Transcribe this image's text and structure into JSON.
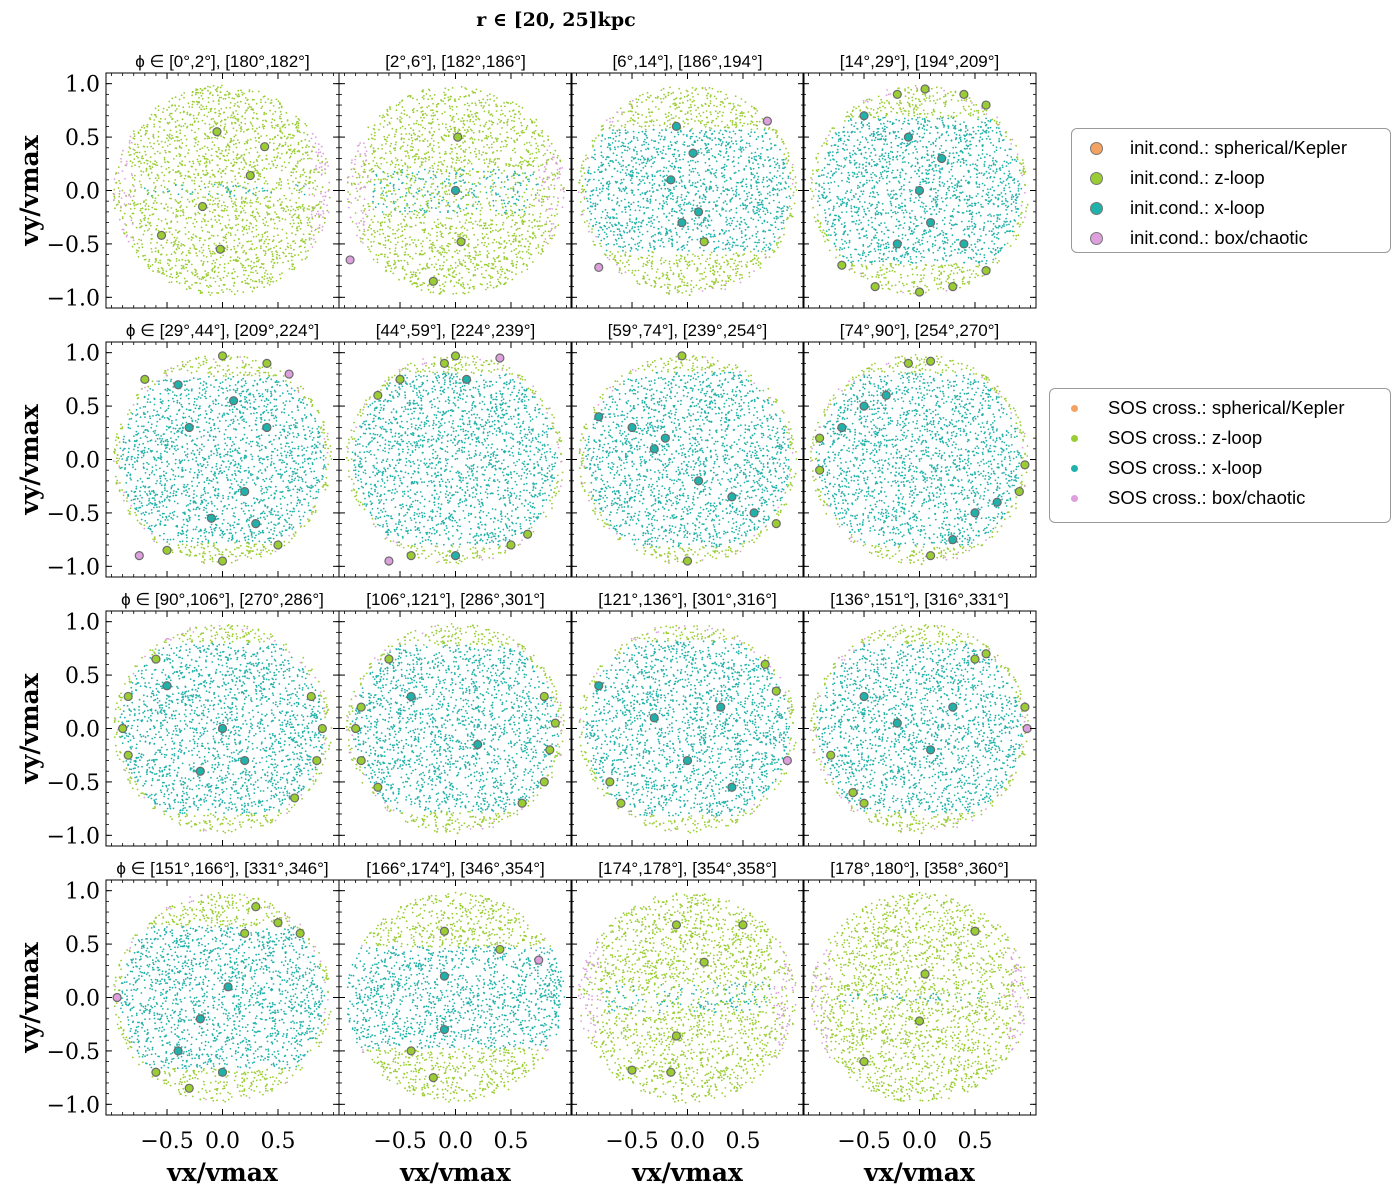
{
  "chart_data": {
    "type": "scatter",
    "title": "r ∈ [20, 25]kpc",
    "xlabel": "vx/vmax",
    "ylabel": "vy/vmax",
    "xlim": [
      -1.05,
      1.05
    ],
    "ylim": [
      -1.1,
      1.1
    ],
    "xticks": [
      "−0.5",
      "0.0",
      "0.5"
    ],
    "yticks": [
      "1.0",
      "0.5",
      "0.0",
      "−0.5",
      "−1.0"
    ],
    "colors": {
      "spherical_kepler": "#f4a261",
      "z_loop": "#9acd32",
      "x_loop": "#20b2aa",
      "box_chaotic": "#dda0dd"
    },
    "legend_init": [
      {
        "label": "init.cond.: spherical/Kepler",
        "class": "spherical_kepler"
      },
      {
        "label": "init.cond.: z-loop",
        "class": "z_loop"
      },
      {
        "label": "init.cond.: x-loop",
        "class": "x_loop"
      },
      {
        "label": "init.cond.: box/chaotic",
        "class": "box_chaotic"
      }
    ],
    "legend_sos": [
      {
        "label": "SOS cross.: spherical/Kepler",
        "class": "spherical_kepler"
      },
      {
        "label": "SOS cross.: z-loop",
        "class": "z_loop"
      },
      {
        "label": "SOS cross.: x-loop",
        "class": "x_loop"
      },
      {
        "label": "SOS cross.: box/chaotic",
        "class": "box_chaotic"
      }
    ],
    "panels": [
      {
        "title": "ϕ ∈ [0°,2°], [180°,182°]",
        "xloop": 0.06,
        "zloop": 0.94,
        "init": [
          [
            -0.05,
            0.55,
            "z"
          ],
          [
            0.38,
            0.41,
            "z"
          ],
          [
            0.25,
            0.14,
            "z"
          ],
          [
            -0.18,
            -0.15,
            "z"
          ],
          [
            -0.55,
            -0.42,
            "z"
          ],
          [
            -0.02,
            -0.55,
            "z"
          ]
        ]
      },
      {
        "title": "[2°,6°], [182°,186°]",
        "xloop": 0.22,
        "zloop": 0.78,
        "init": [
          [
            0.02,
            0.5,
            "z"
          ],
          [
            0.0,
            0.0,
            "x"
          ],
          [
            0.05,
            -0.48,
            "z"
          ],
          [
            -0.2,
            -0.85,
            "z"
          ],
          [
            -0.95,
            -0.65,
            "b"
          ]
        ]
      },
      {
        "title": "[6°,14°], [186°,194°]",
        "xloop": 0.6,
        "zloop": 0.4,
        "init": [
          [
            -0.1,
            0.6,
            "x"
          ],
          [
            0.05,
            0.35,
            "x"
          ],
          [
            -0.15,
            0.1,
            "x"
          ],
          [
            0.1,
            -0.2,
            "x"
          ],
          [
            0.15,
            -0.48,
            "z"
          ],
          [
            -0.05,
            -0.3,
            "x"
          ],
          [
            0.72,
            0.65,
            "b"
          ],
          [
            -0.8,
            -0.72,
            "b"
          ]
        ]
      },
      {
        "title": "[14°,29°], [194°,209°]",
        "xloop": 0.72,
        "zloop": 0.28,
        "init": [
          [
            -0.2,
            0.9,
            "z"
          ],
          [
            0.05,
            0.95,
            "z"
          ],
          [
            0.4,
            0.9,
            "z"
          ],
          [
            0.6,
            0.8,
            "z"
          ],
          [
            -0.5,
            0.7,
            "x"
          ],
          [
            -0.1,
            0.5,
            "x"
          ],
          [
            0.2,
            0.3,
            "x"
          ],
          [
            0.0,
            0.0,
            "x"
          ],
          [
            0.1,
            -0.3,
            "x"
          ],
          [
            -0.2,
            -0.5,
            "x"
          ],
          [
            0.4,
            -0.5,
            "x"
          ],
          [
            -0.4,
            -0.9,
            "z"
          ],
          [
            0.0,
            -0.95,
            "z"
          ],
          [
            0.3,
            -0.9,
            "z"
          ],
          [
            0.6,
            -0.75,
            "z"
          ],
          [
            -0.7,
            -0.7,
            "z"
          ]
        ]
      },
      {
        "title": "ϕ ∈ [29°,44°], [209°,224°]",
        "xloop": 0.82,
        "zloop": 0.18,
        "init": [
          [
            -0.7,
            0.75,
            "z"
          ],
          [
            -0.4,
            0.7,
            "x"
          ],
          [
            0.0,
            0.97,
            "z"
          ],
          [
            0.4,
            0.9,
            "z"
          ],
          [
            0.6,
            0.8,
            "b"
          ],
          [
            -0.3,
            0.3,
            "x"
          ],
          [
            0.1,
            0.55,
            "x"
          ],
          [
            0.4,
            0.3,
            "x"
          ],
          [
            0.2,
            -0.3,
            "x"
          ],
          [
            -0.1,
            -0.55,
            "x"
          ],
          [
            0.3,
            -0.6,
            "x"
          ],
          [
            0.5,
            -0.8,
            "z"
          ],
          [
            -0.5,
            -0.85,
            "z"
          ],
          [
            -0.75,
            -0.9,
            "b"
          ],
          [
            0.0,
            -0.95,
            "z"
          ]
        ]
      },
      {
        "title": "[44°,59°], [224°,239°]",
        "xloop": 0.85,
        "zloop": 0.15,
        "init": [
          [
            -0.7,
            0.6,
            "z"
          ],
          [
            -0.5,
            0.75,
            "z"
          ],
          [
            -0.1,
            0.9,
            "z"
          ],
          [
            0.0,
            0.97,
            "z"
          ],
          [
            0.4,
            0.95,
            "b"
          ],
          [
            0.1,
            0.75,
            "x"
          ],
          [
            -0.4,
            -0.9,
            "z"
          ],
          [
            0.0,
            -0.9,
            "x"
          ],
          [
            0.5,
            -0.8,
            "z"
          ],
          [
            0.65,
            -0.7,
            "z"
          ],
          [
            -0.6,
            -0.95,
            "b"
          ]
        ]
      },
      {
        "title": "[59°,74°], [239°,254°]",
        "xloop": 0.86,
        "zloop": 0.14,
        "init": [
          [
            -0.8,
            0.4,
            "x"
          ],
          [
            -0.5,
            0.3,
            "x"
          ],
          [
            -0.2,
            0.2,
            "x"
          ],
          [
            -0.05,
            0.97,
            "z"
          ],
          [
            0.1,
            -0.2,
            "x"
          ],
          [
            0.4,
            -0.35,
            "x"
          ],
          [
            0.6,
            -0.5,
            "x"
          ],
          [
            0.8,
            -0.6,
            "z"
          ],
          [
            0.0,
            -0.95,
            "z"
          ],
          [
            -0.3,
            0.1,
            "x"
          ]
        ]
      },
      {
        "title": "[74°,90°], [254°,270°]",
        "xloop": 0.85,
        "zloop": 0.15,
        "init": [
          [
            -0.9,
            0.2,
            "z"
          ],
          [
            -0.7,
            0.3,
            "x"
          ],
          [
            -0.5,
            0.5,
            "x"
          ],
          [
            -0.3,
            0.6,
            "x"
          ],
          [
            -0.1,
            0.9,
            "z"
          ],
          [
            0.1,
            0.92,
            "z"
          ],
          [
            0.7,
            -0.4,
            "x"
          ],
          [
            0.9,
            -0.3,
            "z"
          ],
          [
            0.95,
            -0.05,
            "z"
          ],
          [
            0.5,
            -0.5,
            "x"
          ],
          [
            0.3,
            -0.75,
            "x"
          ],
          [
            0.1,
            -0.9,
            "z"
          ],
          [
            -0.9,
            -0.1,
            "z"
          ]
        ]
      },
      {
        "title": "ϕ ∈ [90°,106°], [270°,286°]",
        "xloop": 0.84,
        "zloop": 0.16,
        "init": [
          [
            -0.85,
            0.3,
            "z"
          ],
          [
            -0.9,
            0.0,
            "z"
          ],
          [
            -0.85,
            -0.25,
            "z"
          ],
          [
            -0.6,
            0.65,
            "z"
          ],
          [
            -0.5,
            0.4,
            "x"
          ],
          [
            0.8,
            0.3,
            "z"
          ],
          [
            0.9,
            0.0,
            "z"
          ],
          [
            0.85,
            -0.3,
            "z"
          ],
          [
            0.65,
            -0.65,
            "z"
          ],
          [
            0.0,
            0.0,
            "x"
          ],
          [
            -0.2,
            -0.4,
            "x"
          ],
          [
            0.2,
            -0.3,
            "x"
          ]
        ]
      },
      {
        "title": "[106°,121°], [286°,301°]",
        "xloop": 0.82,
        "zloop": 0.18,
        "init": [
          [
            -0.85,
            0.2,
            "z"
          ],
          [
            -0.9,
            0.0,
            "z"
          ],
          [
            -0.85,
            -0.3,
            "z"
          ],
          [
            -0.7,
            -0.55,
            "z"
          ],
          [
            -0.6,
            0.65,
            "z"
          ],
          [
            0.8,
            0.3,
            "z"
          ],
          [
            0.9,
            0.05,
            "z"
          ],
          [
            0.85,
            -0.2,
            "z"
          ],
          [
            0.8,
            -0.5,
            "z"
          ],
          [
            0.6,
            -0.7,
            "z"
          ],
          [
            -0.4,
            0.3,
            "x"
          ],
          [
            0.2,
            -0.15,
            "x"
          ]
        ]
      },
      {
        "title": "[121°,136°], [301°,316°]",
        "xloop": 0.86,
        "zloop": 0.14,
        "init": [
          [
            -0.8,
            0.4,
            "x"
          ],
          [
            -0.7,
            -0.5,
            "z"
          ],
          [
            -0.6,
            -0.7,
            "z"
          ],
          [
            0.7,
            0.6,
            "z"
          ],
          [
            0.8,
            0.35,
            "z"
          ],
          [
            0.9,
            -0.3,
            "b"
          ],
          [
            0.3,
            0.2,
            "x"
          ],
          [
            -0.3,
            0.1,
            "x"
          ],
          [
            0.0,
            -0.3,
            "x"
          ],
          [
            0.4,
            -0.55,
            "x"
          ]
        ]
      },
      {
        "title": "[136°,151°], [316°,331°]",
        "xloop": 0.83,
        "zloop": 0.17,
        "init": [
          [
            -0.8,
            -0.25,
            "z"
          ],
          [
            -0.6,
            -0.6,
            "z"
          ],
          [
            -0.5,
            -0.7,
            "z"
          ],
          [
            0.5,
            0.65,
            "z"
          ],
          [
            0.6,
            0.7,
            "z"
          ],
          [
            0.95,
            0.2,
            "z"
          ],
          [
            0.97,
            0.0,
            "b"
          ],
          [
            0.3,
            0.2,
            "x"
          ],
          [
            -0.2,
            0.05,
            "x"
          ],
          [
            0.1,
            -0.2,
            "x"
          ],
          [
            -0.5,
            0.3,
            "x"
          ]
        ]
      },
      {
        "title": "ϕ ∈ [151°,166°], [331°,346°]",
        "xloop": 0.7,
        "zloop": 0.3,
        "init": [
          [
            0.3,
            0.85,
            "z"
          ],
          [
            0.5,
            0.7,
            "z"
          ],
          [
            0.7,
            0.6,
            "z"
          ],
          [
            0.2,
            0.6,
            "z"
          ],
          [
            0.05,
            0.1,
            "x"
          ],
          [
            -0.2,
            -0.2,
            "x"
          ],
          [
            -0.4,
            -0.5,
            "x"
          ],
          [
            -0.6,
            -0.7,
            "z"
          ],
          [
            -0.3,
            -0.85,
            "z"
          ],
          [
            -0.95,
            0.0,
            "b"
          ],
          [
            0.0,
            -0.7,
            "x"
          ]
        ]
      },
      {
        "title": "[166°,174°], [346°,354°]",
        "xloop": 0.5,
        "zloop": 0.5,
        "init": [
          [
            -0.1,
            0.62,
            "z"
          ],
          [
            0.4,
            0.45,
            "z"
          ],
          [
            0.75,
            0.35,
            "b"
          ],
          [
            -0.1,
            -0.3,
            "x"
          ],
          [
            -0.4,
            -0.5,
            "z"
          ],
          [
            -0.2,
            -0.75,
            "z"
          ],
          [
            -0.1,
            0.2,
            "x"
          ]
        ]
      },
      {
        "title": "[174°,178°], [354°,358°]",
        "xloop": 0.15,
        "zloop": 0.85,
        "init": [
          [
            -0.1,
            0.68,
            "z"
          ],
          [
            0.5,
            0.68,
            "z"
          ],
          [
            0.15,
            0.33,
            "z"
          ],
          [
            -0.1,
            -0.36,
            "z"
          ],
          [
            -0.5,
            -0.68,
            "z"
          ],
          [
            -0.15,
            -0.7,
            "z"
          ]
        ]
      },
      {
        "title": "[178°,180°], [358°,360°]",
        "xloop": 0.04,
        "zloop": 0.96,
        "init": [
          [
            0.5,
            0.62,
            "z"
          ],
          [
            0.05,
            0.22,
            "z"
          ],
          [
            0.0,
            -0.22,
            "z"
          ],
          [
            -0.5,
            -0.6,
            "z"
          ]
        ]
      }
    ]
  }
}
